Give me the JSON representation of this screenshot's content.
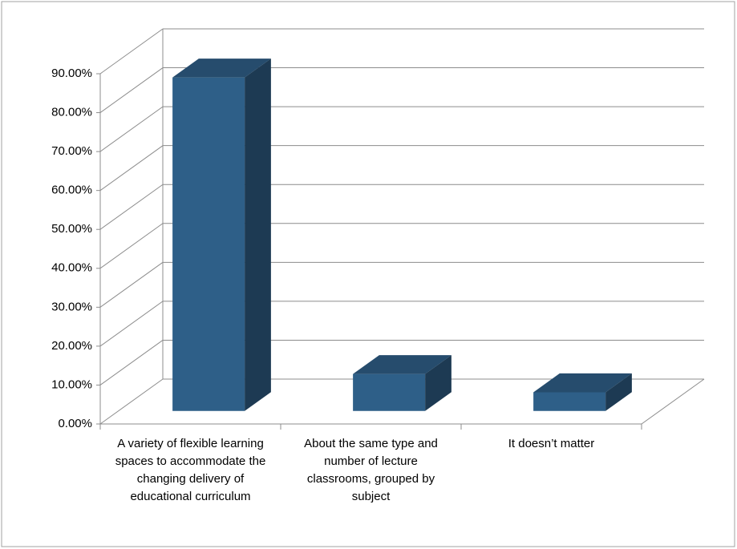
{
  "chart_data": {
    "type": "bar3d",
    "categories": [
      "A variety of flexible learning spaces to accommodate the changing delivery of educational curriculum",
      "About the same type and number of lecture classrooms, grouped by subject",
      "It doesn’t matter"
    ],
    "values": [
      85.7,
      9.5,
      4.8
    ],
    "color": "#2e5f88",
    "ylim": [
      0,
      90
    ],
    "yticks": [
      {
        "value": 0,
        "label": "0.00%"
      },
      {
        "value": 10,
        "label": "10.00%"
      },
      {
        "value": 20,
        "label": "20.00%"
      },
      {
        "value": 30,
        "label": "30.00%"
      },
      {
        "value": 40,
        "label": "40.00%"
      },
      {
        "value": 50,
        "label": "50.00%"
      },
      {
        "value": 60,
        "label": "60.00%"
      },
      {
        "value": 70,
        "label": "70.00%"
      },
      {
        "value": 80,
        "label": "80.00%"
      },
      {
        "value": 90,
        "label": "90.00%"
      }
    ],
    "grid": true
  }
}
